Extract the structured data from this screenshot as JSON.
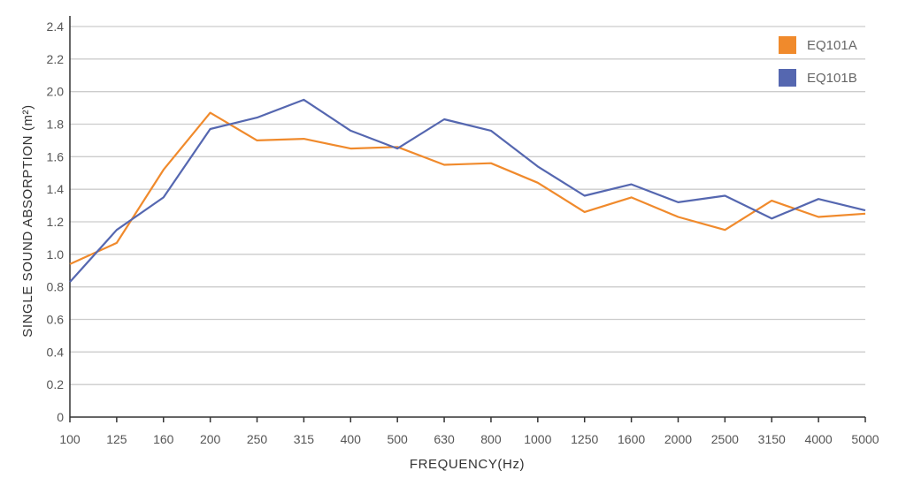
{
  "chart_data": {
    "type": "line",
    "categories": [
      "100",
      "125",
      "160",
      "200",
      "250",
      "315",
      "400",
      "500",
      "630",
      "800",
      "1000",
      "1250",
      "1600",
      "2000",
      "2500",
      "3150",
      "4000",
      "5000"
    ],
    "series": [
      {
        "name": "EQ101A",
        "color": "#F08A2C",
        "values": [
          0.94,
          1.07,
          1.52,
          1.87,
          1.7,
          1.71,
          1.65,
          1.66,
          1.55,
          1.56,
          1.44,
          1.26,
          1.35,
          1.23,
          1.15,
          1.33,
          1.23,
          1.25
        ]
      },
      {
        "name": "EQ101B",
        "color": "#5567B0",
        "values": [
          0.83,
          1.15,
          1.35,
          1.77,
          1.84,
          1.95,
          1.76,
          1.65,
          1.83,
          1.76,
          1.54,
          1.36,
          1.43,
          1.32,
          1.36,
          1.22,
          1.34,
          1.27
        ]
      }
    ],
    "yticks": [
      "0",
      "0.2",
      "0.4",
      "0.6",
      "0.8",
      "1.0",
      "1.2",
      "1.4",
      "1.6",
      "1.8",
      "2.0",
      "2.2",
      "2.4"
    ],
    "ylim": [
      0,
      2.4
    ],
    "xlabel": "FREQUENCY(Hz)",
    "ylabel": "SINGLE SOUND ABSORPTION  (m²)",
    "grid": true,
    "legend_position": "top-right"
  }
}
